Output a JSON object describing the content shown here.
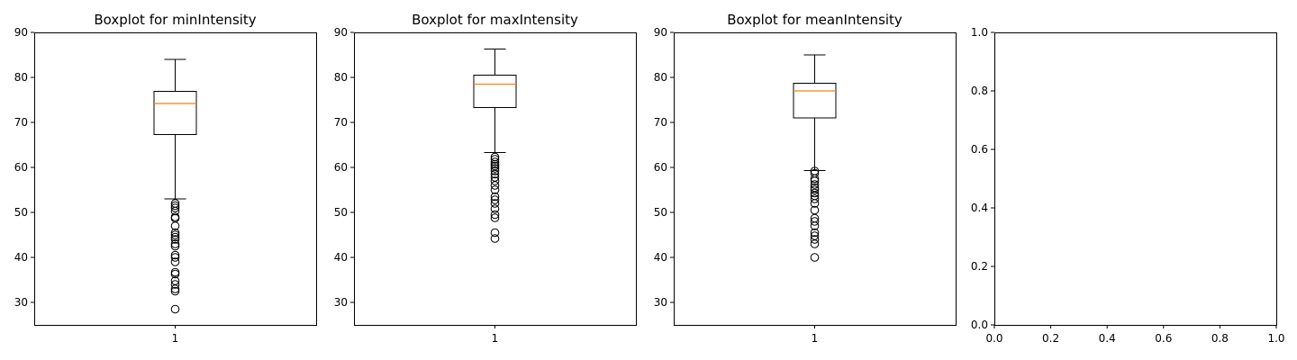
{
  "chart_data": [
    {
      "type": "boxplot",
      "title": "Boxplot for minIntensity",
      "categories": [
        "1"
      ],
      "ylim": [
        25,
        90
      ],
      "yticks": [
        30,
        40,
        50,
        60,
        70,
        80,
        90
      ],
      "colors": {
        "median": "#ff7f0e",
        "box": "#000000"
      },
      "box": {
        "whisker_low": 53,
        "q1": 67.3,
        "median": 74.2,
        "q3": 76.9,
        "whisker_high": 84
      },
      "outliers": [
        52.0,
        51.5,
        51.0,
        50.3,
        49.0,
        48.7,
        47.0,
        45.5,
        45.0,
        44.5,
        44.0,
        43.0,
        42.5,
        40.5,
        40.0,
        39.0,
        36.7,
        36.3,
        34.8,
        34.0,
        33.0,
        32.5,
        28.5
      ]
    },
    {
      "type": "boxplot",
      "title": "Boxplot for maxIntensity",
      "categories": [
        "1"
      ],
      "ylim": [
        25,
        90
      ],
      "yticks": [
        30,
        40,
        50,
        60,
        70,
        80,
        90
      ],
      "colors": {
        "median": "#ff7f0e",
        "box": "#000000"
      },
      "box": {
        "whisker_low": 63.3,
        "q1": 73.3,
        "median": 78.5,
        "q3": 80.5,
        "whisker_high": 86.3
      },
      "outliers": [
        62.3,
        61.8,
        61.2,
        60.7,
        60.3,
        59.8,
        59.2,
        58.5,
        57.8,
        57.0,
        56.0,
        55.0,
        53.5,
        52.8,
        52.0,
        50.8,
        49.5,
        48.8,
        45.5,
        44.2
      ]
    },
    {
      "type": "boxplot",
      "title": "Boxplot for meanIntensity",
      "categories": [
        "1"
      ],
      "ylim": [
        25,
        90
      ],
      "yticks": [
        30,
        40,
        50,
        60,
        70,
        80,
        90
      ],
      "colors": {
        "median": "#ff7f0e",
        "box": "#000000"
      },
      "box": {
        "whisker_low": 59.3,
        "q1": 71.0,
        "median": 77.0,
        "q3": 78.7,
        "whisker_high": 85.0
      },
      "outliers": [
        59.2,
        58.7,
        57.5,
        57.0,
        56.2,
        55.5,
        55.0,
        54.3,
        53.7,
        53.0,
        52.0,
        50.5,
        48.7,
        48.0,
        47.0,
        45.5,
        44.8,
        44.0,
        43.0,
        40.0
      ]
    },
    {
      "type": "empty",
      "title": "",
      "xlim": [
        0,
        1
      ],
      "ylim": [
        0,
        1
      ],
      "xticks": [
        "0.0",
        "0.2",
        "0.4",
        "0.6",
        "0.8",
        "1.0"
      ],
      "yticks": [
        "0.0",
        "0.2",
        "0.4",
        "0.6",
        "0.8",
        "1.0"
      ]
    }
  ]
}
